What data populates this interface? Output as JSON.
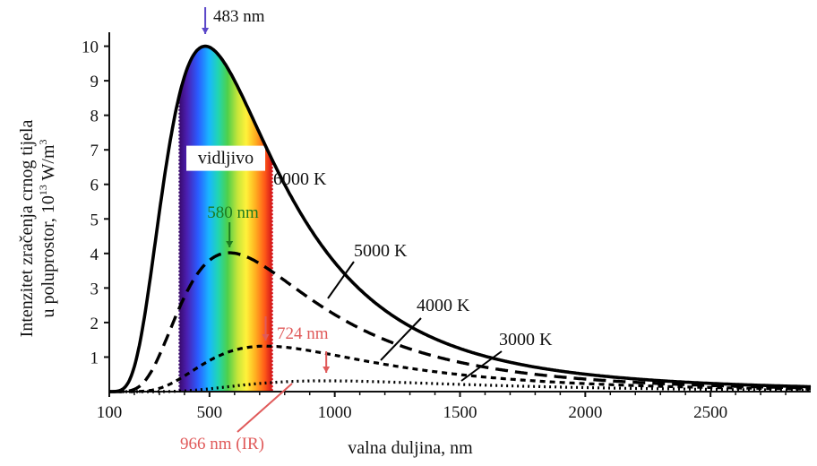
{
  "chart_data": {
    "type": "line",
    "xlabel": "valna duljina, nm",
    "ylabel_line1": "Intenzitet zračenja crnog tijela",
    "ylabel_line2": "u poluprostor, 10",
    "ylabel_exp": "13",
    "ylabel_unit": " W/m",
    "ylabel_unit_exp": "3",
    "xlim": [
      100,
      2900
    ],
    "ylim": [
      0,
      10.3
    ],
    "x_ticks": [
      100,
      500,
      1000,
      1500,
      2000,
      2500
    ],
    "x_tick_labels": [
      "100",
      "500",
      "1000",
      "1500",
      "2000",
      "2500"
    ],
    "y_ticks": [
      1,
      2,
      3,
      4,
      5,
      6,
      7,
      8,
      9,
      10
    ],
    "y_tick_labels": [
      "1",
      "2",
      "3",
      "4",
      "5",
      "6",
      "7",
      "8",
      "9",
      "10"
    ],
    "visible_band": {
      "label": "vidljivo",
      "from": 380,
      "to": 750
    },
    "series": [
      {
        "name": "6000 K",
        "temperature": 6000,
        "style": "solid"
      },
      {
        "name": "5000 K",
        "temperature": 5000,
        "style": "dashed"
      },
      {
        "name": "4000 K",
        "temperature": 4000,
        "style": "dashed-fine"
      },
      {
        "name": "3000 K",
        "temperature": 3000,
        "style": "dotted"
      }
    ],
    "peaks": [
      {
        "label": "483 nm",
        "x": 483,
        "y": 10.0,
        "color": "#5a46c8"
      },
      {
        "label": "580 nm",
        "x": 580,
        "y": 3.9,
        "color": "#1f7a1f"
      },
      {
        "label": "724 nm",
        "x": 724,
        "y": 1.4,
        "color": "#e05a5a"
      },
      {
        "label": "966 nm (IR)",
        "x": 966,
        "y": 0.35,
        "color": "#e05a5a"
      }
    ]
  }
}
